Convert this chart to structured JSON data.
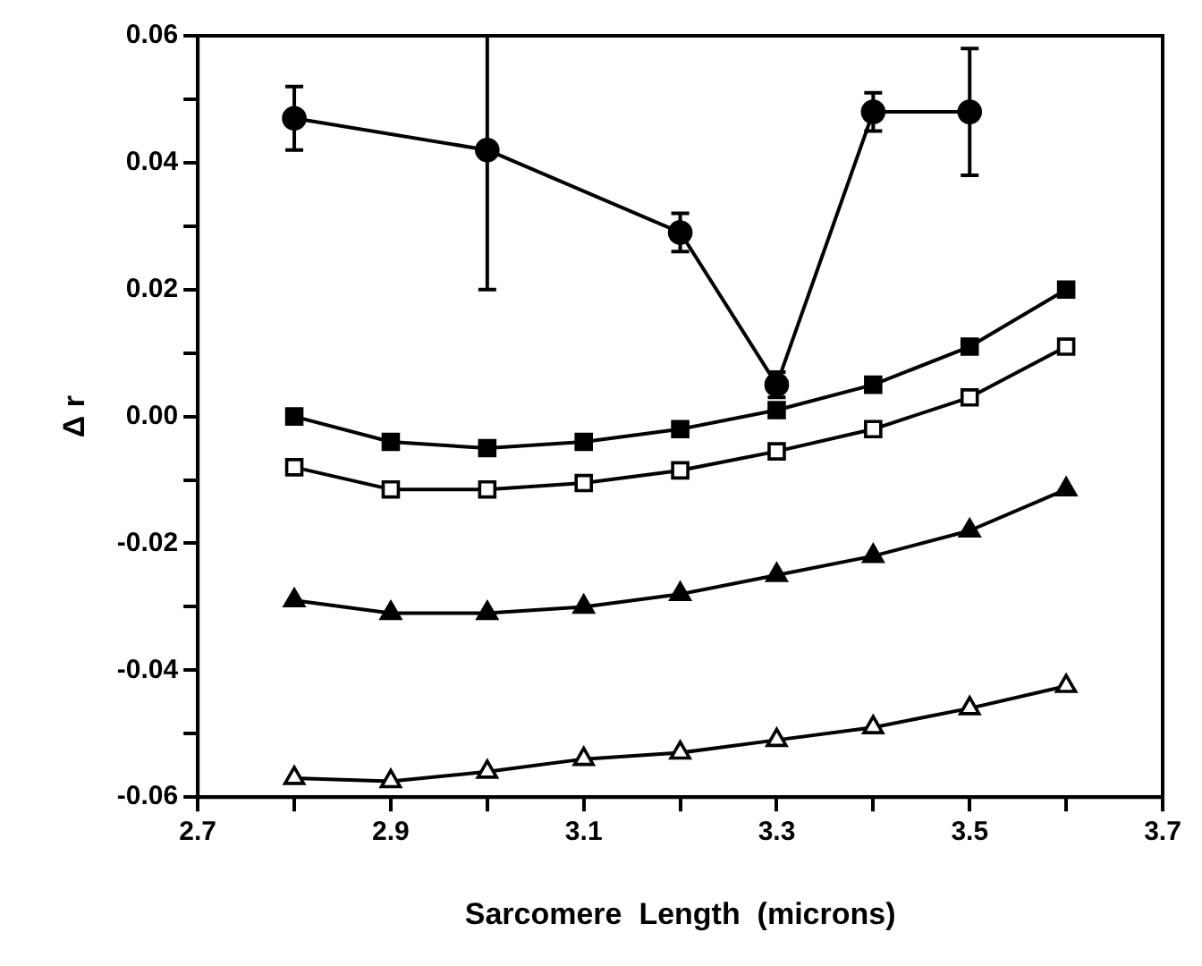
{
  "chart_data": {
    "type": "line",
    "xlabel": "Sarcomere  Length  (microns)",
    "ylabel": "Δ r",
    "xlim": [
      2.7,
      3.7
    ],
    "xticks": [
      2.7,
      {
        "value": 2.8,
        "label": null
      },
      2.9,
      {
        "value": 3.0,
        "label": null
      },
      3.1,
      {
        "value": 3.2,
        "label": null
      },
      3.3,
      {
        "value": 3.4,
        "label": null
      },
      3.5,
      {
        "value": 3.6,
        "label": null
      },
      3.7
    ],
    "ylim": [
      -0.06,
      0.06
    ],
    "yticks": [
      {
        "value": -0.06,
        "label": "-0.06"
      },
      {
        "value": -0.05,
        "label": null
      },
      {
        "value": -0.04,
        "label": "-0.04"
      },
      {
        "value": -0.03,
        "label": null
      },
      {
        "value": -0.02,
        "label": "-0.02"
      },
      {
        "value": -0.01,
        "label": null
      },
      {
        "value": 0,
        "label": "0.00"
      },
      {
        "value": 0.01,
        "label": null
      },
      {
        "value": 0.02,
        "label": "0.02"
      },
      {
        "value": 0.03,
        "label": null
      },
      {
        "value": 0.04,
        "label": "0.04"
      },
      {
        "value": 0.05,
        "label": null
      },
      {
        "value": 0.06,
        "label": "0.06"
      }
    ],
    "grid": false,
    "legend": false,
    "line_style": "solid",
    "series": [
      {
        "color": "#000000",
        "marker": "circle",
        "x": [
          2.8,
          3.0,
          3.2,
          3.3,
          3.4,
          3.5
        ],
        "values": [
          0.047,
          0.042,
          0.029,
          0.005,
          0.048,
          0.048
        ],
        "errors": [
          [
            0.042,
            0.052
          ],
          [
            0.02,
            0.06
          ],
          [
            0.026,
            0.032
          ],
          [
            0.003,
            0.007
          ],
          [
            0.045,
            0.051
          ],
          [
            0.038,
            0.058
          ]
        ]
      },
      {
        "color": "#000000",
        "marker": "square",
        "x": [
          2.8,
          2.9,
          3.0,
          3.1,
          3.2,
          3.3,
          3.4,
          3.5,
          3.6
        ],
        "values": [
          0.0,
          -0.004,
          -0.005,
          -0.004,
          -0.002,
          0.001,
          0.005,
          0.011,
          0.02
        ]
      },
      {
        "color": "#000000",
        "marker": "square",
        "x": [
          2.8,
          2.9,
          3.0,
          3.1,
          3.2,
          3.3,
          3.4,
          3.5,
          3.6
        ],
        "values": [
          -0.008,
          -0.0115,
          -0.0115,
          -0.0105,
          -0.0085,
          -0.0055,
          -0.002,
          0.003,
          0.011
        ]
      },
      {
        "color": "#000000",
        "marker": "triangle",
        "x": [
          2.8,
          2.9,
          3.0,
          3.1,
          3.2,
          3.3,
          3.4,
          3.5,
          3.6
        ],
        "values": [
          -0.029,
          -0.031,
          -0.031,
          -0.03,
          -0.028,
          -0.025,
          -0.022,
          -0.018,
          -0.0115
        ]
      },
      {
        "color": "#000000",
        "marker": "triangle",
        "x": [
          2.8,
          2.9,
          3.0,
          3.1,
          3.2,
          3.3,
          3.4,
          3.5,
          3.6
        ],
        "values": [
          -0.057,
          -0.0575,
          -0.056,
          -0.054,
          -0.053,
          -0.051,
          -0.049,
          -0.046,
          -0.0425
        ]
      }
    ]
  }
}
